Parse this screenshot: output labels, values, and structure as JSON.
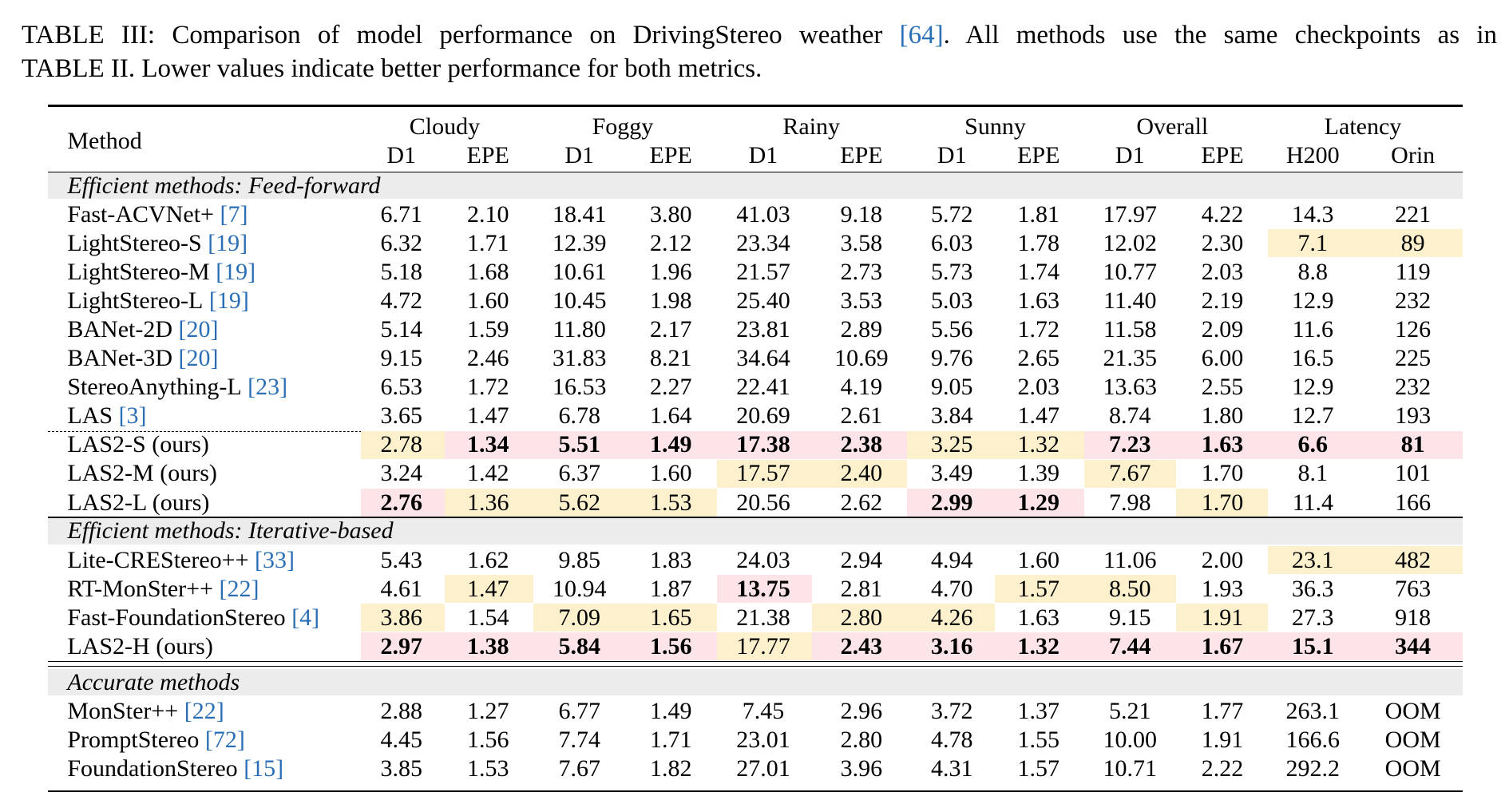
{
  "caption": {
    "line1_before": "TABLE III: Comparison of model performance on DrivingStereo weather ",
    "line1_ref": "[64]",
    "line1_after": ". All methods use the same checkpoints as in",
    "line2": "TABLE II. Lower values indicate better performance for both metrics."
  },
  "table": {
    "header": {
      "method": "Method",
      "groups": [
        "Cloudy",
        "Foggy",
        "Rainy",
        "Sunny",
        "Overall",
        "Latency"
      ],
      "subheaders": [
        "D1",
        "EPE",
        "D1",
        "EPE",
        "D1",
        "EPE",
        "D1",
        "EPE",
        "D1",
        "EPE",
        "H200",
        "Orin"
      ]
    },
    "sections": [
      {
        "title": "Efficient methods: Feed-forward",
        "rows": [
          {
            "method": "Fast-ACVNet+",
            "ref": "[7]",
            "values": [
              "6.71",
              "2.10",
              "18.41",
              "3.80",
              "41.03",
              "9.18",
              "5.72",
              "1.81",
              "17.97",
              "4.22",
              "14.3",
              "221"
            ]
          },
          {
            "method": "LightStereo-S",
            "ref": "[19]",
            "values": [
              "6.32",
              "1.71",
              "12.39",
              "2.12",
              "23.34",
              "3.58",
              "6.03",
              "1.78",
              "12.02",
              "2.30",
              "7.1",
              "89"
            ]
          },
          {
            "method": "LightStereo-M",
            "ref": "[19]",
            "values": [
              "5.18",
              "1.68",
              "10.61",
              "1.96",
              "21.57",
              "2.73",
              "5.73",
              "1.74",
              "10.77",
              "2.03",
              "8.8",
              "119"
            ]
          },
          {
            "method": "LightStereo-L",
            "ref": "[19]",
            "values": [
              "4.72",
              "1.60",
              "10.45",
              "1.98",
              "25.40",
              "3.53",
              "5.03",
              "1.63",
              "11.40",
              "2.19",
              "12.9",
              "232"
            ]
          },
          {
            "method": "BANet-2D",
            "ref": "[20]",
            "values": [
              "5.14",
              "1.59",
              "11.80",
              "2.17",
              "23.81",
              "2.89",
              "5.56",
              "1.72",
              "11.58",
              "2.09",
              "11.6",
              "126"
            ]
          },
          {
            "method": "BANet-3D",
            "ref": "[20]",
            "values": [
              "9.15",
              "2.46",
              "31.83",
              "8.21",
              "34.64",
              "10.69",
              "9.76",
              "2.65",
              "21.35",
              "6.00",
              "16.5",
              "225"
            ]
          },
          {
            "method": "StereoAnything-L",
            "ref": "[23]",
            "values": [
              "6.53",
              "1.72",
              "16.53",
              "2.27",
              "22.41",
              "4.19",
              "9.05",
              "2.03",
              "13.63",
              "2.55",
              "12.9",
              "232"
            ]
          },
          {
            "method": "LAS",
            "ref": "[3]",
            "values": [
              "3.65",
              "1.47",
              "6.78",
              "1.64",
              "20.69",
              "2.61",
              "3.84",
              "1.47",
              "8.74",
              "1.80",
              "12.7",
              "193"
            ]
          },
          {
            "method": "LAS2-S (ours)",
            "values": [
              "2.78",
              "1.34",
              "5.51",
              "1.49",
              "17.38",
              "2.38",
              "3.25",
              "1.32",
              "7.23",
              "1.63",
              "6.6",
              "81"
            ]
          },
          {
            "method": "LAS2-M (ours)",
            "values": [
              "3.24",
              "1.42",
              "6.37",
              "1.60",
              "17.57",
              "2.40",
              "3.49",
              "1.39",
              "7.67",
              "1.70",
              "8.1",
              "101"
            ]
          },
          {
            "method": "LAS2-L (ours)",
            "values": [
              "2.76",
              "1.36",
              "5.62",
              "1.53",
              "20.56",
              "2.62",
              "2.99",
              "1.29",
              "7.98",
              "1.70",
              "11.4",
              "166"
            ]
          }
        ]
      },
      {
        "title": "Efficient methods: Iterative-based",
        "rows": [
          {
            "method": "Lite-CREStereo++",
            "ref": "[33]",
            "values": [
              "5.43",
              "1.62",
              "9.85",
              "1.83",
              "24.03",
              "2.94",
              "4.94",
              "1.60",
              "11.06",
              "2.00",
              "23.1",
              "482"
            ]
          },
          {
            "method": "RT-MonSter++",
            "ref": "[22]",
            "values": [
              "4.61",
              "1.47",
              "10.94",
              "1.87",
              "13.75",
              "2.81",
              "4.70",
              "1.57",
              "8.50",
              "1.93",
              "36.3",
              "763"
            ]
          },
          {
            "method": "Fast-FoundationStereo",
            "ref": "[4]",
            "values": [
              "3.86",
              "1.54",
              "7.09",
              "1.65",
              "21.38",
              "2.80",
              "4.26",
              "1.63",
              "9.15",
              "1.91",
              "27.3",
              "918"
            ]
          },
          {
            "method": "LAS2-H (ours)",
            "values": [
              "2.97",
              "1.38",
              "5.84",
              "1.56",
              "17.77",
              "2.43",
              "3.16",
              "1.32",
              "7.44",
              "1.67",
              "15.1",
              "344"
            ]
          }
        ]
      },
      {
        "title": "Accurate methods",
        "rows": [
          {
            "method": "MonSter++",
            "ref": "[22]",
            "values": [
              "2.88",
              "1.27",
              "6.77",
              "1.49",
              "7.45",
              "2.96",
              "3.72",
              "1.37",
              "5.21",
              "1.77",
              "263.1",
              "OOM"
            ]
          },
          {
            "method": "PromptStereo",
            "ref": "[72]",
            "values": [
              "4.45",
              "1.56",
              "7.74",
              "1.71",
              "23.01",
              "2.80",
              "4.78",
              "1.55",
              "10.00",
              "1.91",
              "166.6",
              "OOM"
            ]
          },
          {
            "method": "FoundationStereo",
            "ref": "[15]",
            "values": [
              "3.85",
              "1.53",
              "7.67",
              "1.82",
              "27.01",
              "3.96",
              "4.31",
              "1.57",
              "10.71",
              "2.22",
              "292.2",
              "OOM"
            ]
          }
        ]
      }
    ]
  }
}
